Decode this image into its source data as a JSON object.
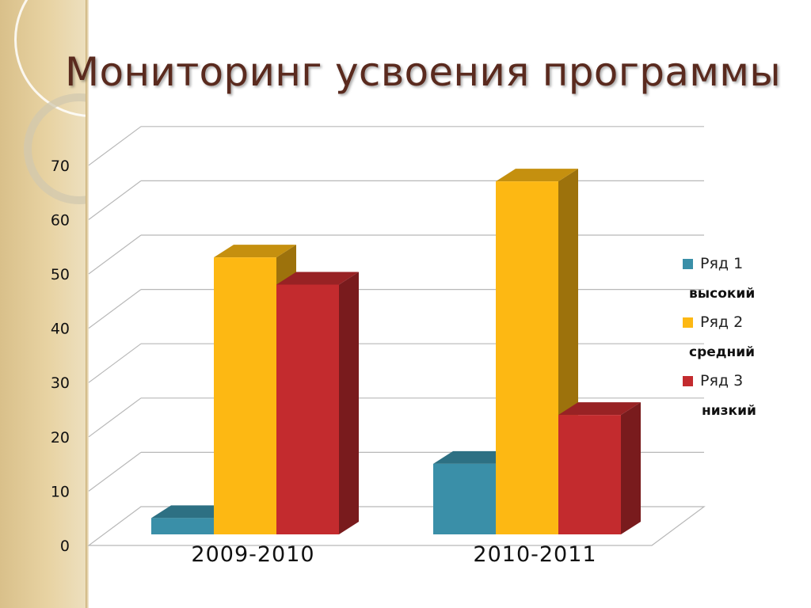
{
  "slide": {
    "title": "Мониторинг усвоения программы"
  },
  "chart_data": {
    "type": "bar",
    "style": "3d-clustered-column",
    "categories": [
      "2009-2010",
      "2010-2011"
    ],
    "series": [
      {
        "name": "Ряд 1",
        "level": "высокий",
        "values": [
          3,
          13
        ],
        "color": "#3a8fa8"
      },
      {
        "name": "Ряд 2",
        "level": "средний",
        "values": [
          51,
          65
        ],
        "color": "#fdb813"
      },
      {
        "name": "Ряд 3",
        "level": "низкий",
        "values": [
          46,
          22
        ],
        "color": "#c32b2e"
      }
    ],
    "yticks": [
      0,
      10,
      20,
      30,
      40,
      50,
      60,
      70
    ],
    "ylim": [
      0,
      70
    ],
    "grid": true,
    "legend_position": "right",
    "title": "",
    "xlabel": "",
    "ylabel": ""
  }
}
